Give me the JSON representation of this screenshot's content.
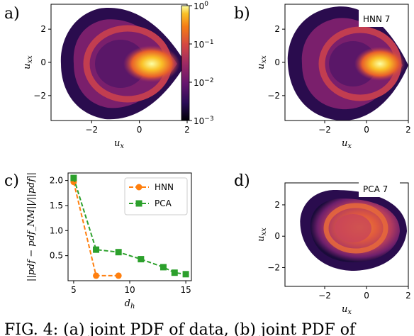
{
  "panel_labels": [
    "a)",
    "b)",
    "c)",
    "d)"
  ],
  "caption": "FIG. 4: (a) joint PDF of data, (b) joint PDF of",
  "chart_data": [
    {
      "type": "heatmap",
      "panel": "a)",
      "xlabel": "u_x",
      "ylabel": "u_xx",
      "xlim": [
        -3.7,
        2
      ],
      "ylim": [
        -3.5,
        3.5
      ],
      "xticks": [
        -2,
        0,
        2
      ],
      "yticks": [
        -2,
        0,
        2
      ],
      "colorbar": {
        "scale": "log",
        "range": [
          0.001,
          1
        ],
        "ticks": [
          "10^0",
          "10^-1",
          "10^-2",
          "10^-3"
        ]
      }
    },
    {
      "type": "heatmap",
      "panel": "b)",
      "annotation": "HNN 7",
      "xlabel": "u_x",
      "ylabel": "u_xx",
      "xlim": [
        -3.9,
        2
      ],
      "ylim": [
        -3.5,
        3.5
      ],
      "xticks": [
        -2,
        0,
        2
      ],
      "yticks": [
        -2,
        0,
        2
      ]
    },
    {
      "type": "line",
      "panel": "c)",
      "xlabel": "d_h",
      "ylabel": "||pdf − pdf_NM||/||pdf||",
      "xlim": [
        4.5,
        15.5
      ],
      "ylim": [
        0.0,
        2.15
      ],
      "xticks": [
        5,
        10,
        15
      ],
      "yticks": [
        0.5,
        1.0,
        1.5,
        2.0
      ],
      "legend_placement": "top-right",
      "series": [
        {
          "name": "HNN",
          "color": "#ff7f0e",
          "marker": "circle",
          "x": [
            5,
            7,
            9
          ],
          "values": [
            1.97,
            0.1,
            0.1
          ]
        },
        {
          "name": "PCA",
          "color": "#2ca02c",
          "marker": "square",
          "x": [
            5,
            7,
            9,
            11,
            13,
            14,
            15
          ],
          "values": [
            2.05,
            0.62,
            0.57,
            0.43,
            0.27,
            0.16,
            0.13
          ]
        }
      ]
    },
    {
      "type": "heatmap",
      "panel": "d)",
      "annotation": "PCA 7",
      "xlabel": "u_x",
      "ylabel": "u_xx",
      "xlim": [
        -3.9,
        2
      ],
      "ylim": [
        -3.2,
        3.4
      ],
      "xticks": [
        -2,
        0,
        2
      ],
      "yticks": [
        -2,
        0,
        2
      ]
    }
  ]
}
